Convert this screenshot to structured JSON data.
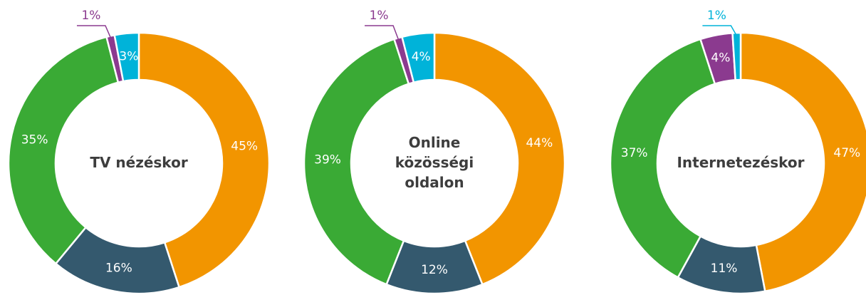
{
  "chart_data": [
    {
      "type": "donut",
      "title": "TV nézéskor",
      "values": [
        45,
        16,
        35,
        1,
        3
      ],
      "value_labels": [
        "45%",
        "16%",
        "35%",
        "1%",
        "3%"
      ],
      "colors": [
        "#f29500",
        "#34596e",
        "#3aaa35",
        "#8b3a8f",
        "#00b3d9"
      ]
    },
    {
      "type": "donut",
      "title": "Online közösségi oldalon",
      "values": [
        44,
        12,
        39,
        1,
        4
      ],
      "value_labels": [
        "44%",
        "12%",
        "39%",
        "1%",
        "4%"
      ],
      "colors": [
        "#f29500",
        "#34596e",
        "#3aaa35",
        "#8b3a8f",
        "#00b3d9"
      ]
    },
    {
      "type": "donut",
      "title": "Internetezéskor",
      "values": [
        47,
        11,
        37,
        4,
        1
      ],
      "value_labels": [
        "47%",
        "11%",
        "37%",
        "4%",
        "1%"
      ],
      "colors": [
        "#f29500",
        "#34596e",
        "#3aaa35",
        "#8b3a8f",
        "#00b3d9"
      ]
    }
  ]
}
